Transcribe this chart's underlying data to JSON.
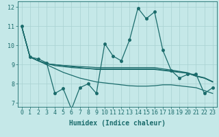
{
  "xlabel": "Humidex (Indice chaleur)",
  "bg_color": "#c5e8e8",
  "grid_color": "#a8d0d0",
  "line_color": "#1a6b6b",
  "xlim": [
    -0.5,
    23.5
  ],
  "ylim": [
    6.8,
    12.3
  ],
  "xticks": [
    0,
    1,
    2,
    3,
    4,
    5,
    6,
    7,
    8,
    9,
    10,
    11,
    12,
    13,
    14,
    15,
    16,
    17,
    18,
    19,
    20,
    21,
    22,
    23
  ],
  "yticks": [
    7,
    8,
    9,
    10,
    11,
    12
  ],
  "series": [
    [
      11.0,
      9.4,
      9.3,
      9.1,
      7.5,
      7.75,
      6.68,
      7.8,
      8.0,
      7.5,
      10.1,
      9.45,
      9.2,
      10.3,
      11.95,
      11.4,
      11.75,
      9.75,
      8.7,
      8.3,
      8.5,
      8.5,
      7.5,
      7.8
    ],
    [
      11.0,
      9.4,
      9.2,
      9.05,
      9.0,
      8.95,
      8.9,
      8.85,
      8.8,
      8.75,
      8.75,
      8.75,
      8.75,
      8.75,
      8.75,
      8.75,
      8.75,
      8.7,
      8.65,
      8.6,
      8.55,
      8.4,
      8.3,
      8.1
    ],
    [
      11.0,
      9.4,
      9.2,
      9.05,
      8.95,
      8.9,
      8.85,
      8.82,
      8.8,
      8.78,
      8.78,
      8.78,
      8.78,
      8.78,
      8.78,
      8.78,
      8.78,
      8.72,
      8.68,
      8.62,
      8.56,
      8.4,
      8.3,
      8.1
    ],
    [
      11.0,
      9.4,
      9.2,
      9.05,
      9.0,
      8.96,
      8.93,
      8.9,
      8.88,
      8.85,
      8.85,
      8.85,
      8.85,
      8.85,
      8.85,
      8.85,
      8.85,
      8.78,
      8.72,
      8.65,
      8.58,
      8.42,
      8.32,
      8.12
    ],
    [
      11.0,
      9.4,
      9.2,
      9.0,
      8.8,
      8.6,
      8.45,
      8.3,
      8.2,
      8.1,
      8.05,
      8.0,
      7.95,
      7.9,
      7.88,
      7.88,
      7.9,
      7.95,
      7.95,
      7.9,
      7.85,
      7.8,
      7.65,
      7.5
    ]
  ],
  "marker": "o",
  "marker_size": 2.5,
  "linewidth": 0.9,
  "fontsize_label": 7,
  "fontsize_tick": 6
}
